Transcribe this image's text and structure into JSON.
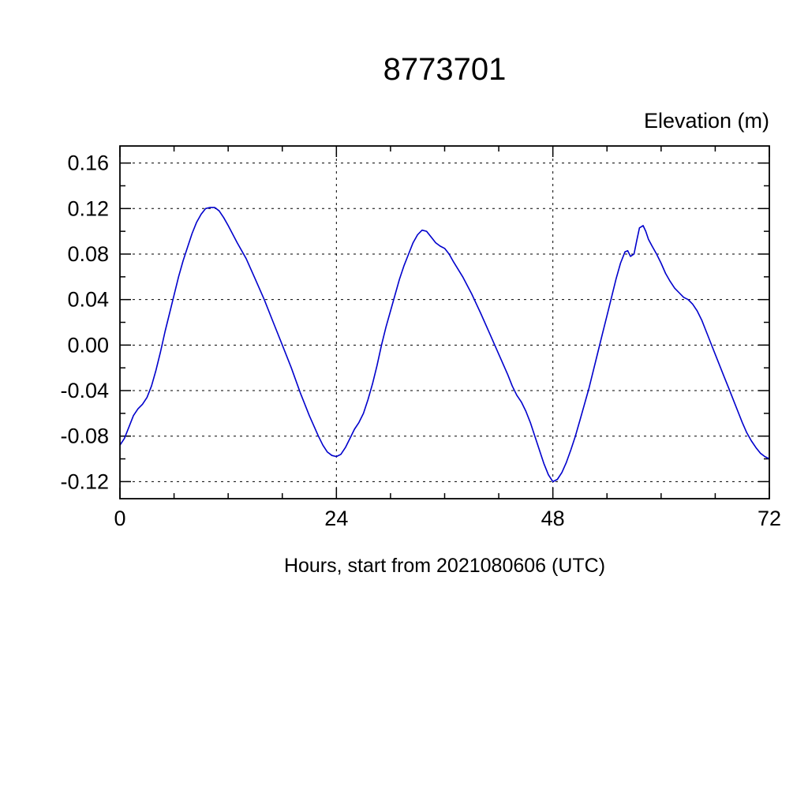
{
  "chart_data": {
    "type": "line",
    "title": "8773701",
    "ylabel": "Elevation (m)",
    "xlabel": "Hours, start from 2021080606 (UTC)",
    "xlim": [
      0,
      72
    ],
    "ylim": [
      -0.135,
      0.175
    ],
    "x_ticks": [
      0,
      24,
      48,
      72
    ],
    "x_minor_step": 6,
    "y_ticks": [
      0.16,
      0.12,
      0.08,
      0.04,
      0.0,
      -0.04,
      -0.08,
      -0.12
    ],
    "y_minor_step": 0.02,
    "grid": true,
    "legend": "none",
    "line_color": "#0000cc",
    "axis_color": "#000000",
    "series": [
      {
        "name": "elevation",
        "points": [
          [
            0,
            -0.088
          ],
          [
            0.5,
            -0.082
          ],
          [
            1,
            -0.072
          ],
          [
            1.5,
            -0.062
          ],
          [
            2,
            -0.056
          ],
          [
            2.5,
            -0.052
          ],
          [
            3,
            -0.046
          ],
          [
            3.5,
            -0.036
          ],
          [
            4,
            -0.022
          ],
          [
            4.5,
            -0.006
          ],
          [
            5,
            0.012
          ],
          [
            5.5,
            0.028
          ],
          [
            6,
            0.044
          ],
          [
            6.5,
            0.06
          ],
          [
            7,
            0.074
          ],
          [
            7.5,
            0.086
          ],
          [
            8,
            0.098
          ],
          [
            8.5,
            0.108
          ],
          [
            9,
            0.115
          ],
          [
            9.5,
            0.12
          ],
          [
            10,
            0.121
          ],
          [
            10.5,
            0.121
          ],
          [
            11,
            0.118
          ],
          [
            11.5,
            0.112
          ],
          [
            12,
            0.105
          ],
          [
            13,
            0.09
          ],
          [
            14,
            0.076
          ],
          [
            15,
            0.058
          ],
          [
            16,
            0.04
          ],
          [
            17,
            0.02
          ],
          [
            18,
            0
          ],
          [
            19,
            -0.02
          ],
          [
            20,
            -0.042
          ],
          [
            21,
            -0.062
          ],
          [
            22,
            -0.08
          ],
          [
            22.5,
            -0.088
          ],
          [
            23,
            -0.094
          ],
          [
            23.5,
            -0.097
          ],
          [
            24,
            -0.098
          ],
          [
            24.5,
            -0.096
          ],
          [
            25,
            -0.09
          ],
          [
            25.5,
            -0.082
          ],
          [
            26,
            -0.074
          ],
          [
            26.5,
            -0.068
          ],
          [
            27,
            -0.06
          ],
          [
            27.5,
            -0.048
          ],
          [
            28,
            -0.034
          ],
          [
            28.5,
            -0.018
          ],
          [
            29,
            0
          ],
          [
            29.5,
            0.016
          ],
          [
            30,
            0.03
          ],
          [
            30.5,
            0.044
          ],
          [
            31,
            0.058
          ],
          [
            31.5,
            0.07
          ],
          [
            32,
            0.08
          ],
          [
            32.5,
            0.09
          ],
          [
            33,
            0.097
          ],
          [
            33.5,
            0.101
          ],
          [
            34,
            0.1
          ],
          [
            34.5,
            0.095
          ],
          [
            35,
            0.09
          ],
          [
            35.5,
            0.087
          ],
          [
            36,
            0.085
          ],
          [
            36.5,
            0.08
          ],
          [
            37,
            0.073
          ],
          [
            38,
            0.06
          ],
          [
            39,
            0.045
          ],
          [
            40,
            0.028
          ],
          [
            41,
            0.01
          ],
          [
            42,
            -0.008
          ],
          [
            43,
            -0.026
          ],
          [
            43.5,
            -0.036
          ],
          [
            44,
            -0.044
          ],
          [
            44.5,
            -0.05
          ],
          [
            45,
            -0.058
          ],
          [
            45.5,
            -0.068
          ],
          [
            46,
            -0.08
          ],
          [
            46.5,
            -0.092
          ],
          [
            47,
            -0.104
          ],
          [
            47.5,
            -0.114
          ],
          [
            48,
            -0.12
          ],
          [
            48.5,
            -0.118
          ],
          [
            49,
            -0.112
          ],
          [
            49.5,
            -0.103
          ],
          [
            50,
            -0.092
          ],
          [
            50.5,
            -0.08
          ],
          [
            51,
            -0.066
          ],
          [
            51.5,
            -0.052
          ],
          [
            52,
            -0.038
          ],
          [
            52.5,
            -0.022
          ],
          [
            53,
            -0.006
          ],
          [
            53.5,
            0.01
          ],
          [
            54,
            0.026
          ],
          [
            54.5,
            0.042
          ],
          [
            55,
            0.058
          ],
          [
            55.5,
            0.072
          ],
          [
            56,
            0.082
          ],
          [
            56.3,
            0.083
          ],
          [
            56.6,
            0.078
          ],
          [
            57,
            0.08
          ],
          [
            57.3,
            0.092
          ],
          [
            57.6,
            0.103
          ],
          [
            58,
            0.105
          ],
          [
            58.3,
            0.1
          ],
          [
            58.6,
            0.093
          ],
          [
            59,
            0.087
          ],
          [
            59.5,
            0.08
          ],
          [
            60,
            0.072
          ],
          [
            60.5,
            0.063
          ],
          [
            61,
            0.056
          ],
          [
            61.5,
            0.05
          ],
          [
            62,
            0.046
          ],
          [
            62.5,
            0.042
          ],
          [
            63,
            0.04
          ],
          [
            63.5,
            0.036
          ],
          [
            64,
            0.03
          ],
          [
            64.5,
            0.022
          ],
          [
            65,
            0.012
          ],
          [
            65.5,
            0.002
          ],
          [
            66,
            -0.008
          ],
          [
            66.5,
            -0.018
          ],
          [
            67,
            -0.028
          ],
          [
            67.5,
            -0.038
          ],
          [
            68,
            -0.048
          ],
          [
            68.5,
            -0.058
          ],
          [
            69,
            -0.068
          ],
          [
            69.5,
            -0.077
          ],
          [
            70,
            -0.084
          ],
          [
            70.5,
            -0.09
          ],
          [
            71,
            -0.095
          ],
          [
            71.5,
            -0.098
          ],
          [
            72,
            -0.1
          ]
        ]
      }
    ]
  }
}
